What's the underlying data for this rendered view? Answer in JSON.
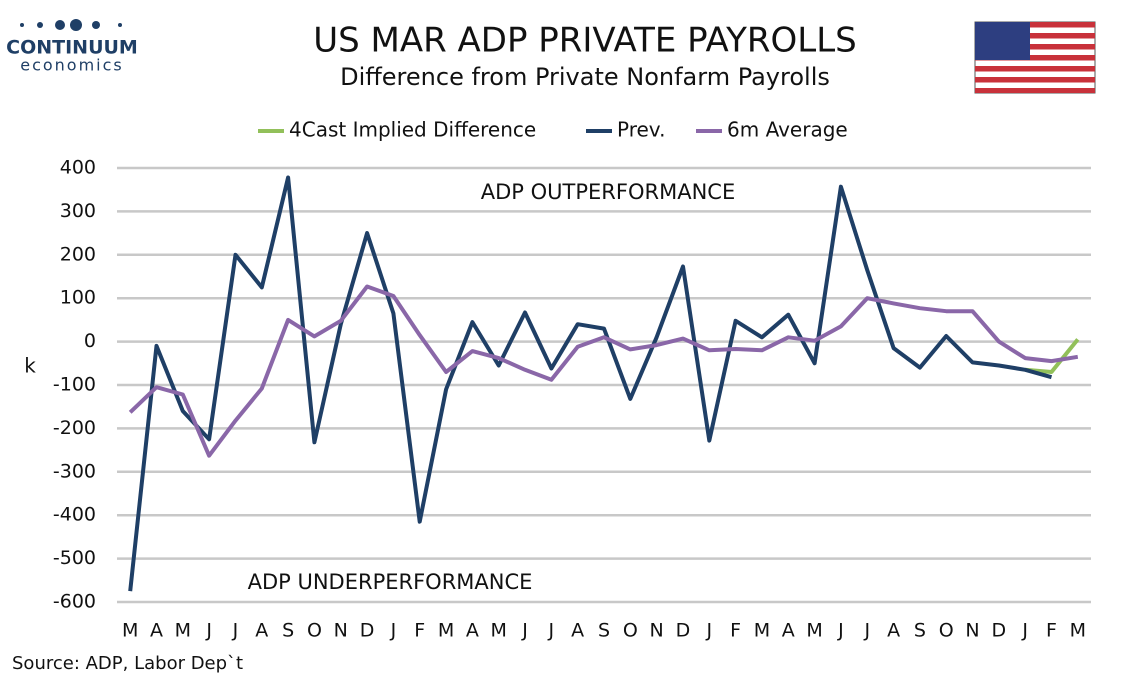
{
  "brand": {
    "name": "CONTINUUM",
    "tagline": "economics"
  },
  "chart_data": {
    "type": "line",
    "title": "US MAR ADP PRIVATE PAYROLLS",
    "subtitle": "Difference from Private Nonfarm Payrolls",
    "y_label": "k",
    "annotations": [
      "ADP OUTPERFORMANCE",
      "ADP UNDERPERFORMANCE"
    ],
    "source": "Source: ADP, Labor Dep`t",
    "categories": [
      "M",
      "A",
      "M",
      "J",
      "J",
      "A",
      "S",
      "O",
      "N",
      "D",
      "J",
      "F",
      "M",
      "A",
      "M",
      "J",
      "J",
      "A",
      "S",
      "O",
      "N",
      "D",
      "J",
      "F",
      "M",
      "A",
      "M",
      "J",
      "J",
      "A",
      "S",
      "O",
      "N",
      "D",
      "J",
      "F",
      "M"
    ],
    "series": [
      {
        "name": "4Cast Implied Difference",
        "color": "#92c05a",
        "values": [
          null,
          null,
          null,
          null,
          null,
          null,
          null,
          null,
          null,
          null,
          null,
          null,
          null,
          null,
          null,
          null,
          null,
          null,
          null,
          null,
          null,
          null,
          null,
          null,
          null,
          null,
          null,
          null,
          null,
          null,
          null,
          null,
          null,
          null,
          -65,
          -70,
          5
        ]
      },
      {
        "name": "Prev.",
        "color": "#1f3f66",
        "values": [
          -575,
          -10,
          -160,
          -225,
          200,
          125,
          378,
          -232,
          40,
          250,
          65,
          -415,
          -110,
          45,
          -55,
          67,
          -62,
          40,
          30,
          -132,
          10,
          173,
          -228,
          48,
          10,
          62,
          -50,
          357,
          165,
          -15,
          -60,
          13,
          -48,
          -55,
          -65,
          -82,
          null
        ]
      },
      {
        "name": "6m Average",
        "color": "#8a67a8",
        "values": [
          -163,
          -105,
          -122,
          -263,
          -182,
          -108,
          50,
          12,
          48,
          127,
          105,
          15,
          -70,
          -22,
          -38,
          -65,
          -88,
          -12,
          10,
          -18,
          -8,
          7,
          -20,
          -17,
          -20,
          10,
          2,
          35,
          100,
          88,
          77,
          70,
          70,
          0,
          -38,
          -45,
          -35
        ]
      }
    ],
    "ylim": [
      -600,
      400
    ],
    "yticks": [
      -600,
      -500,
      -400,
      -300,
      -200,
      -100,
      0,
      100,
      200,
      300,
      400
    ],
    "grid": true
  }
}
